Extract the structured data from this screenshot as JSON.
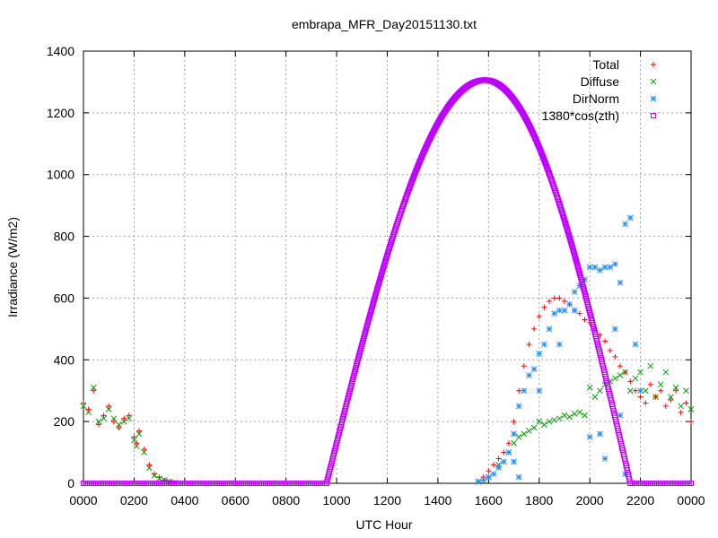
{
  "chart_data": {
    "type": "scatter",
    "title": "embrapa_MFR_Day20151130.txt",
    "xlabel": "UTC Hour",
    "ylabel": "Irradiance (W/m2)",
    "xlim": [
      0,
      2400
    ],
    "ylim": [
      0,
      1400
    ],
    "x_tick_labels": [
      "0000",
      "0200",
      "0400",
      "0600",
      "0800",
      "1000",
      "1200",
      "1400",
      "1600",
      "1800",
      "2000",
      "2200",
      "0000"
    ],
    "y_ticks": [
      0,
      200,
      400,
      600,
      800,
      1000,
      1200,
      1400
    ],
    "grid": true,
    "legend_position": "top-right",
    "series": [
      {
        "name": "Total",
        "marker": "+",
        "color": "#ff0000",
        "points": [
          [
            0,
            260
          ],
          [
            20,
            240
          ],
          [
            40,
            300
          ],
          [
            60,
            190
          ],
          [
            80,
            220
          ],
          [
            100,
            250
          ],
          [
            120,
            200
          ],
          [
            140,
            180
          ],
          [
            160,
            210
          ],
          [
            180,
            220
          ],
          [
            200,
            150
          ],
          [
            210,
            130
          ],
          [
            220,
            170
          ],
          [
            240,
            110
          ],
          [
            260,
            60
          ],
          [
            280,
            30
          ],
          [
            300,
            20
          ],
          [
            320,
            10
          ],
          [
            340,
            5
          ],
          [
            360,
            2
          ],
          [
            1560,
            5
          ],
          [
            1580,
            20
          ],
          [
            1600,
            40
          ],
          [
            1620,
            60
          ],
          [
            1640,
            80
          ],
          [
            1660,
            100
          ],
          [
            1680,
            130
          ],
          [
            1700,
            200
          ],
          [
            1720,
            300
          ],
          [
            1740,
            380
          ],
          [
            1760,
            450
          ],
          [
            1780,
            500
          ],
          [
            1800,
            540
          ],
          [
            1820,
            570
          ],
          [
            1840,
            590
          ],
          [
            1860,
            600
          ],
          [
            1880,
            600
          ],
          [
            1900,
            590
          ],
          [
            1920,
            580
          ],
          [
            1940,
            560
          ],
          [
            1960,
            550
          ],
          [
            1980,
            530
          ],
          [
            2000,
            520
          ],
          [
            2020,
            500
          ],
          [
            2040,
            480
          ],
          [
            2060,
            460
          ],
          [
            2080,
            430
          ],
          [
            2100,
            410
          ],
          [
            2120,
            380
          ],
          [
            2140,
            360
          ],
          [
            2160,
            330
          ],
          [
            2180,
            300
          ],
          [
            2200,
            280
          ],
          [
            2220,
            260
          ],
          [
            2240,
            320
          ],
          [
            2260,
            280
          ],
          [
            2280,
            300
          ],
          [
            2300,
            250
          ],
          [
            2320,
            270
          ],
          [
            2340,
            300
          ],
          [
            2360,
            230
          ],
          [
            2380,
            260
          ],
          [
            2400,
            200
          ]
        ]
      },
      {
        "name": "Diffuse",
        "marker": "x",
        "color": "#00a000",
        "points": [
          [
            0,
            250
          ],
          [
            20,
            230
          ],
          [
            40,
            310
          ],
          [
            60,
            200
          ],
          [
            80,
            210
          ],
          [
            100,
            240
          ],
          [
            120,
            210
          ],
          [
            140,
            190
          ],
          [
            160,
            200
          ],
          [
            180,
            210
          ],
          [
            200,
            140
          ],
          [
            210,
            120
          ],
          [
            220,
            160
          ],
          [
            240,
            100
          ],
          [
            260,
            50
          ],
          [
            280,
            25
          ],
          [
            300,
            15
          ],
          [
            320,
            10
          ],
          [
            340,
            5
          ],
          [
            360,
            2
          ],
          [
            1560,
            5
          ],
          [
            1600,
            20
          ],
          [
            1640,
            60
          ],
          [
            1680,
            100
          ],
          [
            1700,
            130
          ],
          [
            1720,
            150
          ],
          [
            1740,
            160
          ],
          [
            1760,
            170
          ],
          [
            1780,
            180
          ],
          [
            1800,
            200
          ],
          [
            1820,
            190
          ],
          [
            1840,
            200
          ],
          [
            1860,
            205
          ],
          [
            1880,
            210
          ],
          [
            1900,
            220
          ],
          [
            1920,
            215
          ],
          [
            1940,
            225
          ],
          [
            1960,
            230
          ],
          [
            1980,
            220
          ],
          [
            2000,
            310
          ],
          [
            2020,
            280
          ],
          [
            2040,
            300
          ],
          [
            2060,
            320
          ],
          [
            2080,
            330
          ],
          [
            2100,
            340
          ],
          [
            2120,
            350
          ],
          [
            2140,
            360
          ],
          [
            2160,
            300
          ],
          [
            2180,
            340
          ],
          [
            2200,
            360
          ],
          [
            2220,
            300
          ],
          [
            2240,
            380
          ],
          [
            2260,
            280
          ],
          [
            2280,
            320
          ],
          [
            2300,
            360
          ],
          [
            2320,
            280
          ],
          [
            2340,
            310
          ],
          [
            2360,
            250
          ],
          [
            2380,
            300
          ],
          [
            2400,
            240
          ]
        ]
      },
      {
        "name": "DirNorm",
        "marker": "*",
        "color": "#1e90ff",
        "points": [
          [
            1560,
            5
          ],
          [
            1580,
            10
          ],
          [
            1600,
            20
          ],
          [
            1620,
            30
          ],
          [
            1640,
            50
          ],
          [
            1660,
            70
          ],
          [
            1680,
            100
          ],
          [
            1700,
            160
          ],
          [
            1720,
            250
          ],
          [
            1740,
            300
          ],
          [
            1760,
            350
          ],
          [
            1780,
            370
          ],
          [
            1800,
            420
          ],
          [
            1820,
            450
          ],
          [
            1840,
            500
          ],
          [
            1860,
            550
          ],
          [
            1880,
            560
          ],
          [
            1900,
            560
          ],
          [
            1920,
            580
          ],
          [
            1940,
            620
          ],
          [
            1960,
            640
          ],
          [
            1980,
            660
          ],
          [
            2000,
            700
          ],
          [
            2020,
            700
          ],
          [
            2040,
            690
          ],
          [
            2060,
            700
          ],
          [
            2080,
            700
          ],
          [
            2100,
            710
          ],
          [
            2120,
            650
          ],
          [
            2140,
            840
          ],
          [
            2160,
            860
          ],
          [
            2180,
            450
          ],
          [
            2200,
            300
          ],
          [
            1700,
            70
          ],
          [
            1720,
            20
          ],
          [
            1800,
            300
          ],
          [
            1880,
            450
          ],
          [
            1940,
            560
          ],
          [
            2000,
            150
          ],
          [
            2040,
            160
          ],
          [
            2060,
            80
          ],
          [
            2100,
            500
          ],
          [
            2120,
            220
          ],
          [
            2140,
            30
          ]
        ]
      },
      {
        "name": "1380*cos(zth)",
        "marker": "square",
        "color": "#c000ff",
        "sunrise": 960,
        "sunset": 2160,
        "peak_x": 1586,
        "peak_y": 1306
      }
    ]
  }
}
